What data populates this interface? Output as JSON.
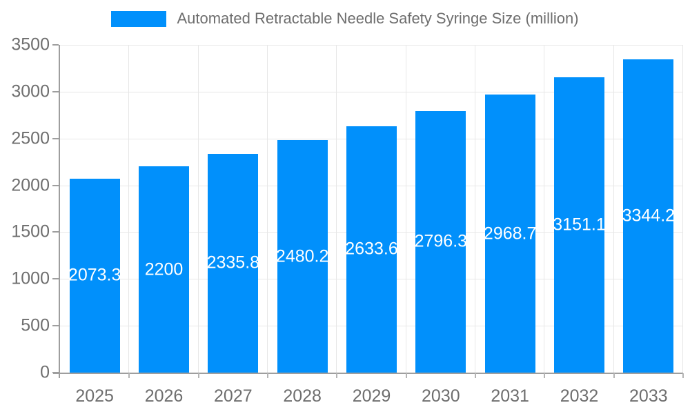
{
  "chart_data": {
    "type": "bar",
    "title": "Automated Retractable Needle Safety Syringe Size (million)",
    "categories": [
      "2025",
      "2026",
      "2027",
      "2028",
      "2029",
      "2030",
      "2031",
      "2032",
      "2033"
    ],
    "values": [
      2073.3,
      2200,
      2335.8,
      2480.2,
      2633.6,
      2796.3,
      2968.7,
      3151.1,
      3344.2
    ],
    "xlabel": "",
    "ylabel": "",
    "ylim": [
      0,
      3500
    ],
    "y_ticks": [
      0,
      500,
      1000,
      1500,
      2000,
      2500,
      3000,
      3500
    ],
    "grid": "on",
    "legend_position": "top",
    "colors": {
      "bar": "#0190fb",
      "value_label": "#ffffff",
      "axis_text": "#6e6e6e",
      "grid_line": "#e7e7e7",
      "axis_line": "#9e9e9e"
    }
  }
}
